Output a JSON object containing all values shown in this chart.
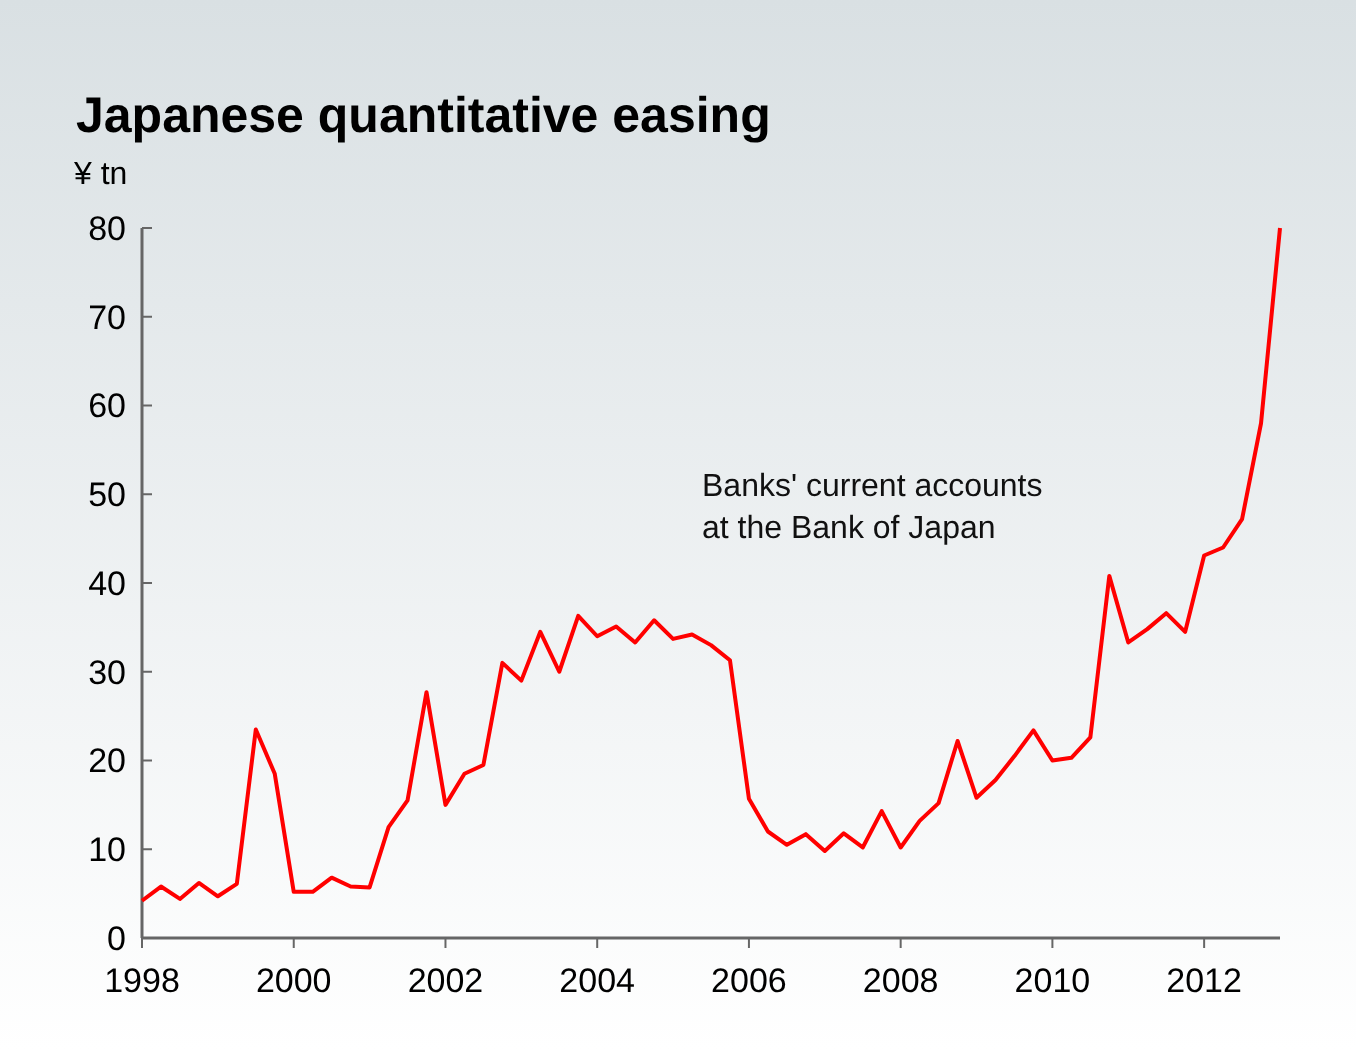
{
  "chart_data": {
    "type": "line",
    "title": "Japanese quantitative easing",
    "ylabel": "¥ tn",
    "x": [
      1998,
      1998.25,
      1998.5,
      1998.75,
      1999,
      1999.25,
      1999.5,
      1999.75,
      2000,
      2000.25,
      2000.5,
      2000.75,
      2001,
      2001.25,
      2001.5,
      2001.75,
      2002,
      2002.25,
      2002.5,
      2002.75,
      2003,
      2003.25,
      2003.5,
      2003.75,
      2004,
      2004.25,
      2004.5,
      2004.75,
      2005,
      2005.25,
      2005.5,
      2005.75,
      2006,
      2006.25,
      2006.5,
      2006.75,
      2007,
      2007.25,
      2007.5,
      2007.75,
      2008,
      2008.25,
      2008.5,
      2008.75,
      2009,
      2009.25,
      2009.5,
      2009.75,
      2010,
      2010.25,
      2010.5,
      2010.75,
      2011,
      2011.25,
      2011.5,
      2011.75,
      2012,
      2012.25,
      2012.5,
      2012.75,
      2013
    ],
    "series": [
      {
        "name": "Banks' current accounts at the Bank of Japan",
        "color": "#ff0000",
        "values": [
          4.2,
          5.8,
          4.4,
          6.2,
          4.7,
          6.1,
          23.5,
          18.5,
          5.2,
          5.2,
          6.8,
          5.8,
          5.7,
          12.5,
          15.5,
          27.7,
          15.0,
          18.5,
          19.5,
          31,
          29,
          34.5,
          30,
          36.3,
          34,
          35.1,
          33.3,
          35.8,
          33.7,
          34.2,
          33,
          31.3,
          15.7,
          12,
          10.5,
          11.7,
          9.8,
          11.8,
          10.2,
          14.3,
          10.2,
          13.2,
          15.2,
          22.2,
          15.8,
          17.8,
          20.5,
          23.4,
          20,
          20.3,
          22.6,
          40.8,
          33.3,
          34.8,
          36.6,
          34.5,
          43.1,
          44,
          47.2,
          58,
          80
        ]
      }
    ],
    "xlim": [
      1998,
      2013
    ],
    "xticks": [
      1998,
      2000,
      2002,
      2004,
      2006,
      2008,
      2010,
      2012
    ],
    "ylim": [
      0,
      80
    ],
    "yticks": [
      0,
      10,
      20,
      30,
      40,
      50,
      60,
      70,
      80
    ],
    "grid": false,
    "marker": "none",
    "line_style": "solid"
  }
}
